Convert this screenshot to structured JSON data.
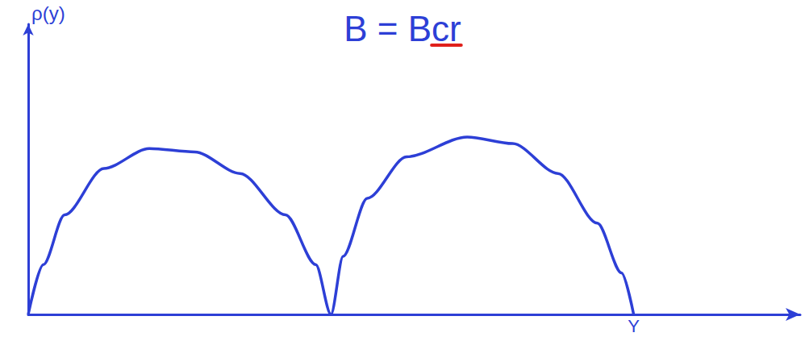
{
  "chart_data": {
    "type": "line",
    "title": "B = Bcr",
    "y_label": "ρ(y)",
    "x": [
      0,
      0.05,
      0.12,
      0.25,
      0.4,
      0.55,
      0.7,
      0.85,
      0.95,
      1,
      1.04,
      1.12,
      1.25,
      1.45,
      1.6,
      1.75,
      1.88,
      1.96,
      2
    ],
    "values": [
      0,
      0.3,
      0.6,
      0.88,
      1.0,
      0.98,
      0.85,
      0.6,
      0.3,
      0,
      0.35,
      0.7,
      0.95,
      1.07,
      1.03,
      0.85,
      0.55,
      0.25,
      0
    ],
    "color": "#2d3fd6",
    "highlight_color": "#e0201b",
    "xlim": [
      0,
      2.55
    ],
    "ylim": [
      0,
      1.75
    ],
    "tick_labels": false,
    "grid": false,
    "annotations": [
      {
        "text": "Y",
        "x": 2,
        "y": 0
      }
    ]
  }
}
